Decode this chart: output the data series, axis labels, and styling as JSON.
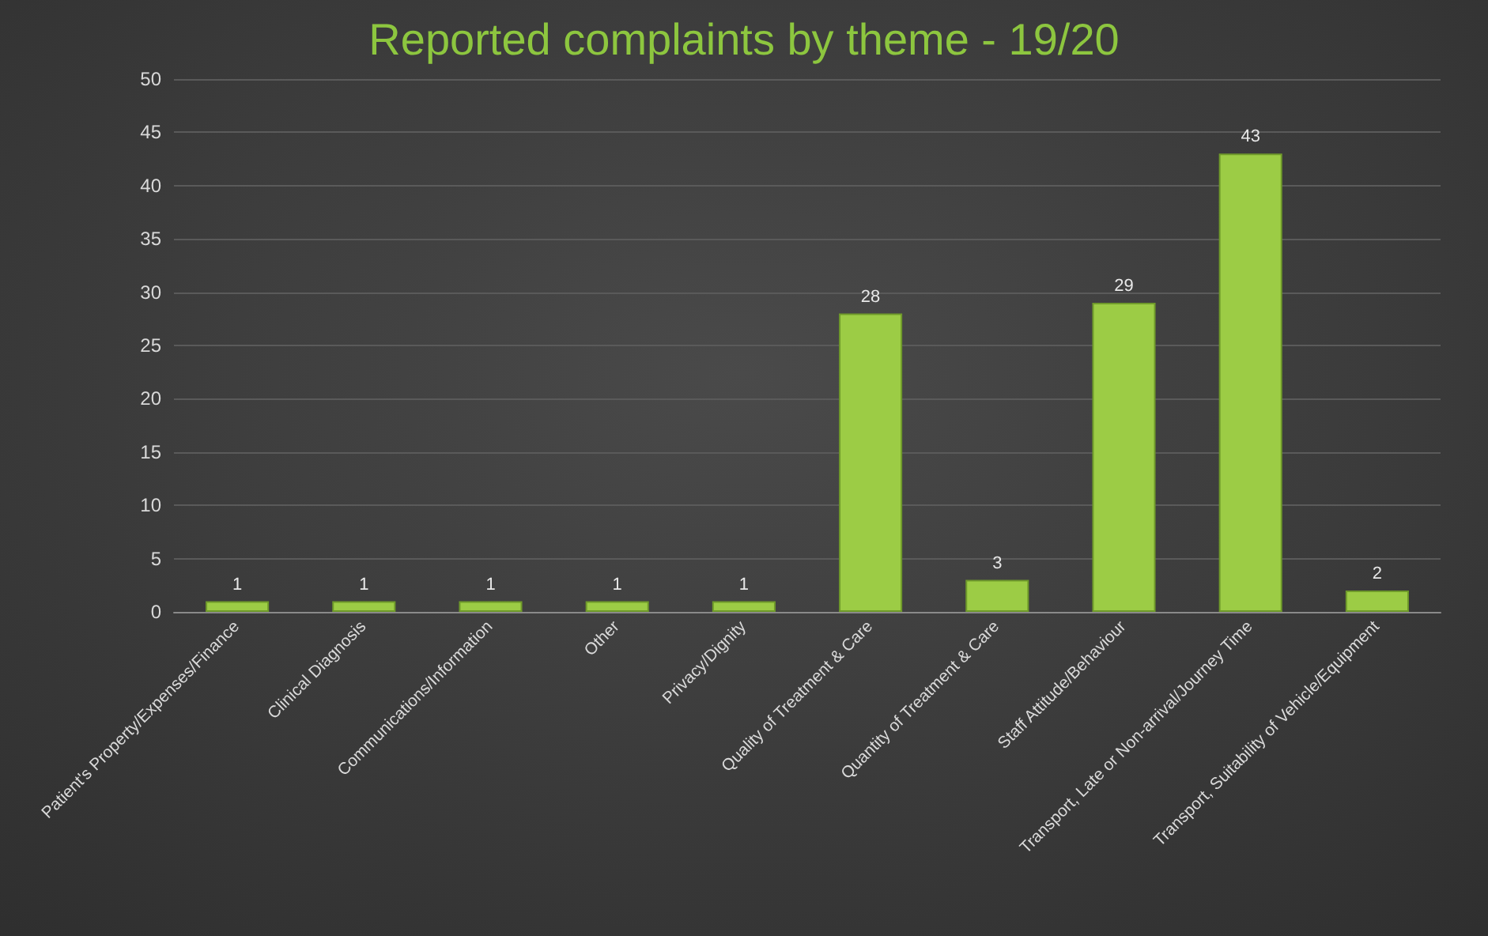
{
  "chart_data": {
    "type": "bar",
    "title": "Reported complaints by theme - 19/20",
    "categories": [
      "Patient's Property/Expenses/Finance",
      "Clinical Diagnosis",
      "Communications/Information",
      "Other",
      "Privacy/Dignity",
      "Quality of Treatment & Care",
      "Quantity of Treatment & Care",
      "Staff Attitude/Behaviour",
      "Transport, Late or Non-arrival/Journey Time",
      "Transport, Suitability of Vehicle/Equipment"
    ],
    "values": [
      1,
      1,
      1,
      1,
      1,
      28,
      3,
      29,
      43,
      2
    ],
    "color": "#9ccc45",
    "ylim": [
      0,
      50
    ],
    "yticks": [
      0,
      5,
      10,
      15,
      20,
      25,
      30,
      35,
      40,
      45,
      50
    ],
    "grid": "y",
    "data_labels": true
  }
}
